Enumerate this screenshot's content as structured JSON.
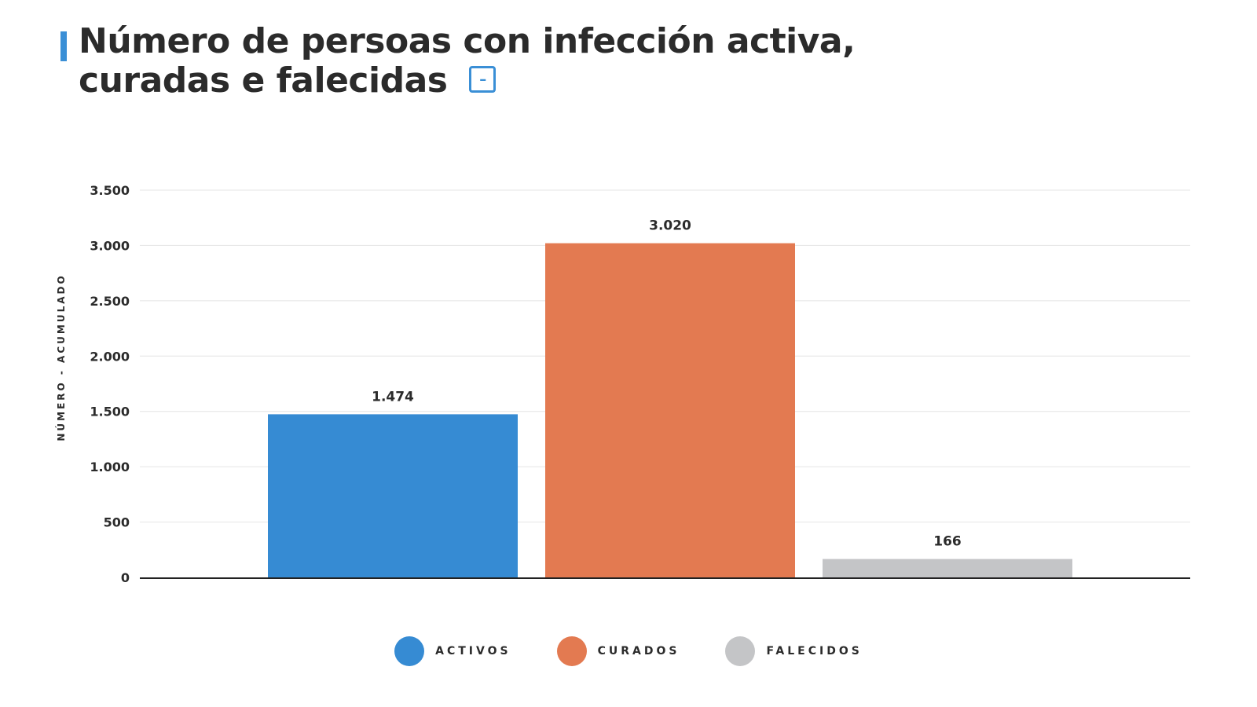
{
  "title_line1": "Número de persoas con infección activa,",
  "title_line2": "curadas e falecidas",
  "collapse_symbol": "–",
  "accent_color": "#3a8fd6",
  "chart_data": {
    "type": "bar",
    "categories": [
      "ACTIVOS",
      "CURADOS",
      "FALECIDOS"
    ],
    "values": [
      1474,
      3020,
      166
    ],
    "data_labels": [
      "1.474",
      "3.020",
      "166"
    ],
    "colors": [
      "#368bd3",
      "#e37a51",
      "#c4c5c7"
    ],
    "ylabel": "NÚMERO - ACUMULADO",
    "ylim": [
      0,
      3500
    ],
    "yticks": [
      0,
      500,
      1000,
      1500,
      2000,
      2500,
      3000,
      3500
    ],
    "ytick_labels": [
      "0",
      "500",
      "1.000",
      "1.500",
      "2.000",
      "2.500",
      "3.000",
      "3.500"
    ],
    "grid": true,
    "legend": {
      "placement": "bottom",
      "entries": [
        "ACTIVOS",
        "CURADOS",
        "FALECIDOS"
      ]
    }
  }
}
